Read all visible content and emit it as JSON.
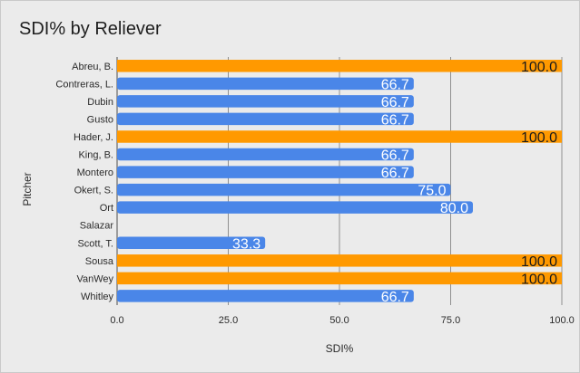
{
  "chart_data": {
    "type": "bar",
    "orientation": "horizontal",
    "title": "SDI% by Reliever",
    "xlabel": "SDI%",
    "ylabel": "Pitcher",
    "xlim": [
      0,
      100
    ],
    "xticks": [
      "0.0",
      "25.0",
      "50.0",
      "75.0",
      "100.0"
    ],
    "grid": true,
    "categories": [
      "Abreu, B.",
      "Contreras, L.",
      "Dubin",
      "Gusto",
      "Hader, J.",
      "King, B.",
      "Montero",
      "Okert, S.",
      "Ort",
      "Salazar",
      "Scott, T.",
      "Sousa",
      "VanWey",
      "Whitley"
    ],
    "values": [
      100.0,
      66.7,
      66.7,
      66.7,
      100.0,
      66.7,
      66.7,
      75.0,
      80.0,
      null,
      33.3,
      100.0,
      100.0,
      66.7
    ],
    "data_labels": [
      "100.0",
      "66.7",
      "66.7",
      "66.7",
      "100.0",
      "66.7",
      "66.7",
      "75.0",
      "80.0",
      "",
      "33.3",
      "100.0",
      "100.0",
      "66.7"
    ],
    "colors": {
      "highlight": "#ff9900",
      "default": "#4a86e8",
      "background": "#ebebeb",
      "grid": "#7a7a7a"
    }
  }
}
